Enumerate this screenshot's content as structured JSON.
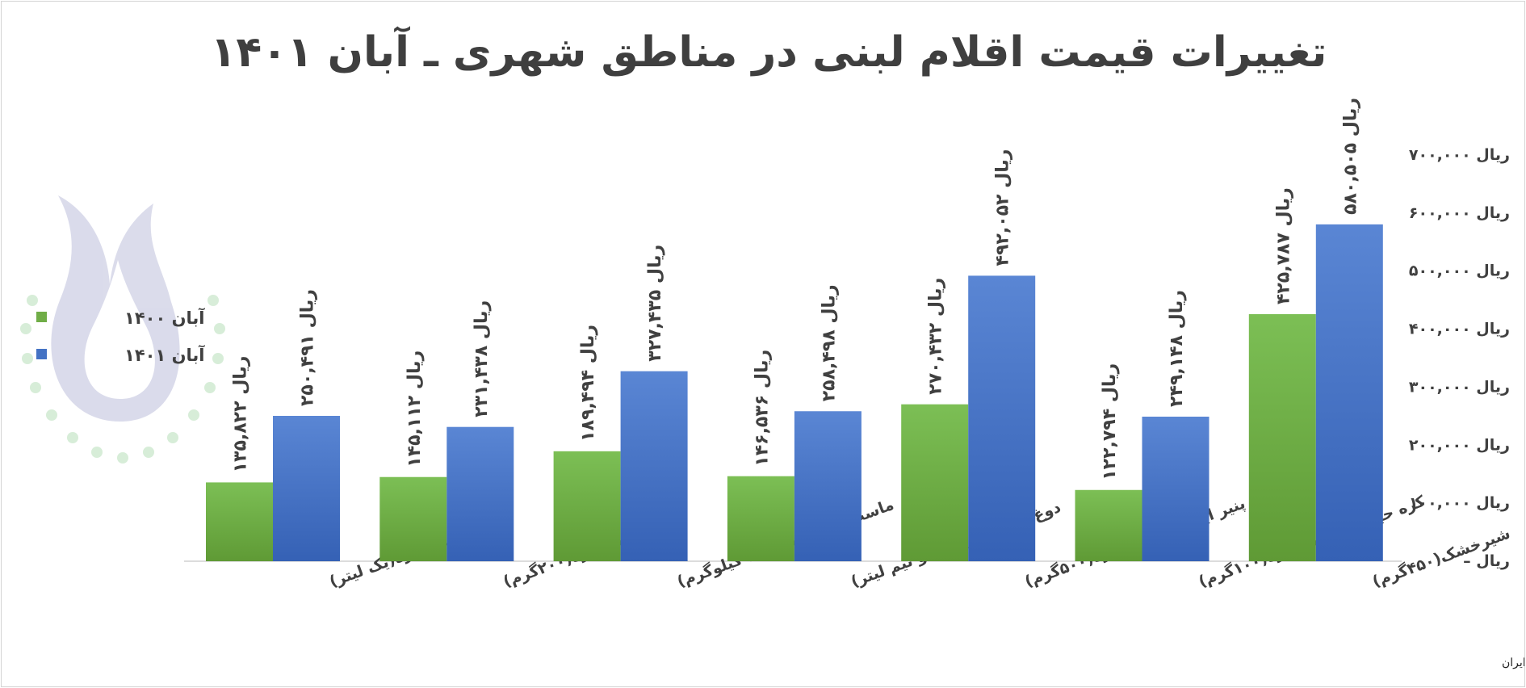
{
  "chart_data": {
    "type": "bar",
    "title": "تغییرات قیمت اقلام لبنی در مناطق شهری ـ آبان ۱۴۰۱",
    "categories": [
      "شیر پاستوریزه(یک لیتر)",
      "خامه پاستوریزه(۲۰۰گرم)",
      "ماست پاستوریزه(یک کیلوگرم)",
      "دوغ پاستوریزه(یک و نیم لیتر)",
      "پنیر ایرانی پاستوریزه(۵۰۰گرم)",
      "کره حیوانی پاستوریزه(۱۰۰گرم)",
      "شیرخشک(۴۵۰گرم)"
    ],
    "series": [
      {
        "name": "آبان ۱۴۰۰",
        "color": "#70ad47",
        "values": [
          135822,
          145112,
          189494,
          146536,
          270432,
          122794,
          425787
        ],
        "labels": [
          "۱۳۵,۸۲۲ ریال",
          "۱۴۵,۱۱۲ ریال",
          "۱۸۹,۴۹۴ ریال",
          "۱۴۶,۵۳۶ ریال",
          "۲۷۰,۴۳۲ ریال",
          "۱۲۲,۷۹۴ ریال",
          "۴۲۵,۷۸۷ ریال"
        ]
      },
      {
        "name": "آبان ۱۴۰۱",
        "color": "#4472c4",
        "values": [
          250491,
          231438,
          327435,
          258498,
          492052,
          249148,
          580505
        ],
        "labels": [
          "۲۵۰,۴۹۱ ریال",
          "۲۳۱,۴۳۸ ریال",
          "۳۲۷,۴۳۵ ریال",
          "۲۵۸,۴۹۸ ریال",
          "۴۹۲,۰۵۲ ریال",
          "۲۴۹,۱۴۸ ریال",
          "۵۸۰,۵۰۵ ریال"
        ]
      }
    ],
    "ylim": [
      0,
      700000
    ],
    "yticks": [
      {
        "value": 0,
        "label": "–  ریال"
      },
      {
        "value": 100000,
        "label": "۱۰۰,۰۰۰ ریال"
      },
      {
        "value": 200000,
        "label": "۲۰۰,۰۰۰ ریال"
      },
      {
        "value": 300000,
        "label": "۳۰۰,۰۰۰ ریال"
      },
      {
        "value": 400000,
        "label": "۴۰۰,۰۰۰ ریال"
      },
      {
        "value": 500000,
        "label": "۵۰۰,۰۰۰ ریال"
      },
      {
        "value": 600000,
        "label": "۶۰۰,۰۰۰ ریال"
      },
      {
        "value": 700000,
        "label": "۷۰۰,۰۰۰ ریال"
      }
    ],
    "yaxis_position": "right",
    "legend_position": "left",
    "grid": false,
    "source": "منبع: مرکز آمار ایران"
  }
}
